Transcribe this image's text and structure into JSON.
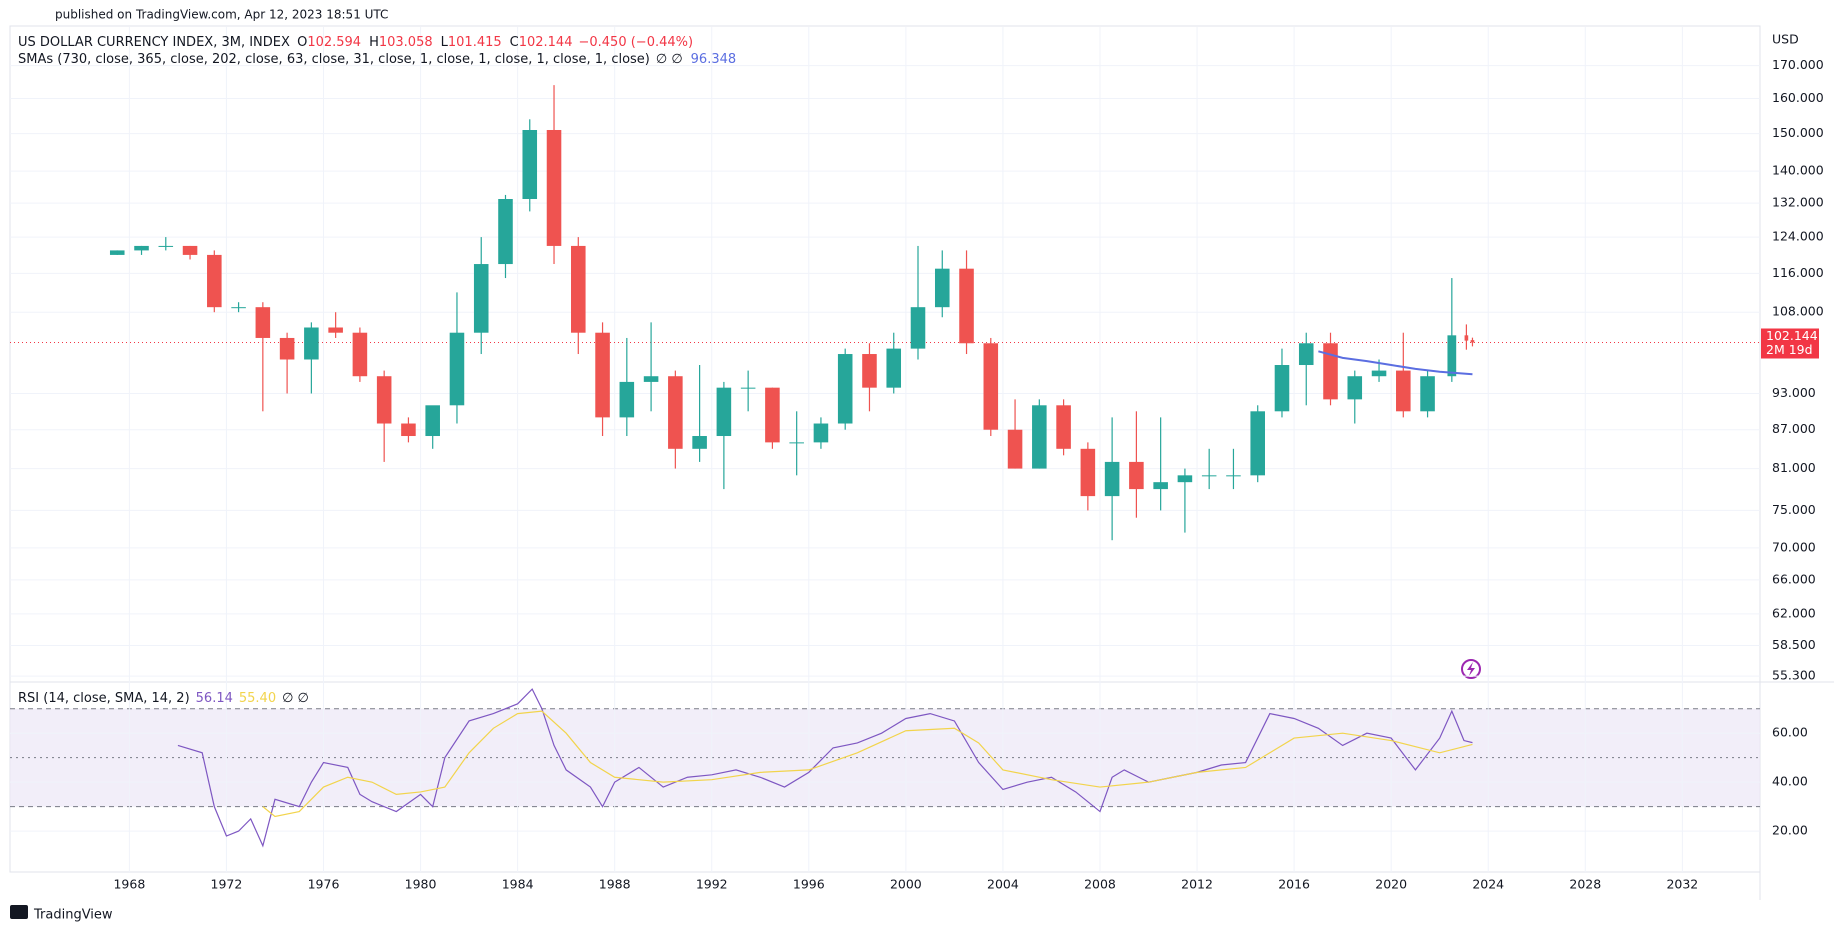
{
  "page": {
    "published": "published on TradingView.com, Apr 12, 2023 18:51 UTC",
    "footer": "TradingView"
  },
  "chart_data": [
    {
      "type": "candlestick",
      "title": "US DOLLAR CURRENCY INDEX, 3M, INDEX",
      "ohlc_labels": [
        "O",
        "H",
        "L",
        "C"
      ],
      "ohlc_values": [
        102.594,
        103.058,
        101.415,
        102.144
      ],
      "change": "−0.450 (−0.44%)",
      "indicator": "SMAs (730, close, 365, close, 202, close, 63, close, 31, close, 1, close, 1, close, 1, close, 1, close)",
      "indicator_flags": "∅ ∅",
      "indicator_value": 96.348,
      "currency": "USD",
      "last_price": 102.144,
      "countdown": "2M 19d",
      "log_scale": true,
      "grid": true,
      "up_color": "#26a69a",
      "down_color": "#ef5350",
      "last_price_color": "#f23645",
      "x": [
        1967.5,
        1968.5,
        1969.5,
        1970.5,
        1971.5,
        1972.5,
        1973.5,
        1974.5,
        1975.5,
        1976.5,
        1977.5,
        1978.5,
        1979.5,
        1980.5,
        1981.5,
        1982.5,
        1983.5,
        1984.5,
        1985.5,
        1986.5,
        1987.5,
        1988.5,
        1989.5,
        1990.5,
        1991.5,
        1992.5,
        1993.5,
        1994.5,
        1995.5,
        1996.5,
        1997.5,
        1998.5,
        1999.5,
        2000.5,
        2001.5,
        2002.5,
        2003.5,
        2004.5,
        2005.5,
        2006.5,
        2007.5,
        2008.5,
        2009.5,
        2010.5,
        2011.5,
        2012.5,
        2013.5,
        2014.5,
        2015.5,
        2016.5,
        2017.5,
        2018.5,
        2019.5,
        2020.5,
        2021.5,
        2022.5,
        2023.1,
        2023.35
      ],
      "open": [
        120,
        121,
        122,
        122,
        120,
        109,
        109,
        103,
        99,
        105,
        104,
        96,
        88,
        86,
        91,
        104,
        118,
        133,
        151,
        122,
        104,
        89,
        95,
        96,
        84,
        86,
        94,
        94,
        85,
        85,
        88,
        100,
        94,
        101,
        109,
        117,
        102,
        87,
        81,
        91,
        84,
        77,
        82,
        78,
        79,
        80,
        80,
        80,
        90,
        98,
        102,
        92,
        96,
        97,
        90,
        96,
        103.5,
        102.594
      ],
      "high": [
        121,
        122,
        124,
        122,
        121,
        110,
        110,
        104,
        106,
        108,
        105,
        97,
        89,
        90,
        112,
        124,
        134,
        154,
        164,
        124,
        106,
        103,
        106,
        97,
        98,
        95,
        97,
        94,
        90,
        89,
        101,
        102,
        104,
        122,
        121,
        121,
        103,
        92,
        92,
        92,
        85,
        89,
        90,
        89,
        81,
        84,
        84,
        91,
        101,
        104,
        104,
        97,
        99,
        104,
        97,
        115,
        105.6,
        103.058
      ],
      "low": [
        120,
        120,
        121,
        119,
        108,
        108,
        90,
        93,
        93,
        103,
        95,
        82,
        85,
        84,
        88,
        100,
        115,
        130,
        118,
        100,
        86,
        86,
        90,
        81,
        82,
        78,
        90,
        84,
        80,
        84,
        87,
        90,
        93,
        99,
        107,
        100,
        86,
        81,
        81,
        83,
        75,
        71,
        74,
        75,
        72,
        78,
        78,
        79,
        89,
        91,
        91,
        88,
        95,
        89,
        89,
        95,
        100.8,
        101.415
      ],
      "close": [
        121,
        122,
        122,
        120,
        109,
        109,
        103,
        99,
        105,
        104,
        96,
        88,
        86,
        91,
        104,
        118,
        133,
        151,
        122,
        104,
        89,
        95,
        96,
        84,
        86,
        94,
        94,
        85,
        85,
        88,
        100,
        94,
        101,
        109,
        117,
        102,
        87,
        81,
        91,
        84,
        77,
        82,
        78,
        79,
        80,
        80,
        80,
        90,
        98,
        102,
        92,
        96,
        97,
        90,
        96,
        103.5,
        102.5,
        102.144
      ],
      "overlays": [
        {
          "color": "#5b6ee1",
          "x": [
            2017.0,
            2018.0,
            2019.0,
            2020.0,
            2021.0,
            2022.0,
            2023.35
          ],
          "values": [
            100.5,
            99.3,
            98.7,
            98.0,
            97.3,
            96.8,
            96.348
          ]
        }
      ],
      "xlim": [
        1963.08,
        2035.2
      ],
      "ylim": [
        54.8,
        182.5
      ],
      "yticks": [
        {
          "value": 170,
          "label": "170.000"
        },
        {
          "value": 160,
          "label": "160.000"
        },
        {
          "value": 150,
          "label": "150.000"
        },
        {
          "value": 140,
          "label": "140.000"
        },
        {
          "value": 132,
          "label": "132.000"
        },
        {
          "value": 124,
          "label": "124.000"
        },
        {
          "value": 116,
          "label": "116.000"
        },
        {
          "value": 108,
          "label": "108.000"
        },
        {
          "value": 93,
          "label": "93.000"
        },
        {
          "value": 87,
          "label": "87.000"
        },
        {
          "value": 81,
          "label": "81.000"
        },
        {
          "value": 75,
          "label": "75.000"
        },
        {
          "value": 70,
          "label": "70.000"
        },
        {
          "value": 66,
          "label": "66.000"
        },
        {
          "value": 62,
          "label": "62.000"
        },
        {
          "value": 58.5,
          "label": "58.500"
        },
        {
          "value": 55.3,
          "label": "55.300"
        }
      ]
    },
    {
      "type": "line",
      "title": "RSI (14, close, SMA, 14, 2)",
      "legend_values": [
        "56.14",
        "55.40"
      ],
      "flags": "∅ ∅",
      "series": [
        {
          "color": "#7e57c2",
          "x": [
            1970,
            1971,
            1971.5,
            1972,
            1972.5,
            1973,
            1973.5,
            1974,
            1975,
            1975.5,
            1976,
            1977,
            1977.5,
            1978,
            1979,
            1980,
            1980.5,
            1981,
            1982,
            1983,
            1984,
            1984.6,
            1985,
            1985.5,
            1986,
            1987,
            1987.5,
            1988,
            1989,
            1990,
            1991,
            1992,
            1993,
            1994,
            1995,
            1996,
            1997,
            1998,
            1999,
            2000,
            2001,
            2002,
            2003,
            2004,
            2005,
            2006,
            2007,
            2008,
            2008.5,
            2009,
            2010,
            2011,
            2012,
            2013,
            2014,
            2015,
            2016,
            2017,
            2018,
            2019,
            2020,
            2021,
            2022,
            2022.5,
            2023,
            2023.35
          ],
          "values": [
            55,
            52,
            30,
            18,
            20,
            25,
            14,
            33,
            30,
            40,
            48,
            46,
            35,
            32,
            28,
            35,
            30,
            50,
            65,
            68,
            72,
            78,
            70,
            55,
            45,
            38,
            30,
            40,
            46,
            38,
            42,
            43,
            45,
            42,
            38,
            44,
            54,
            56,
            60,
            66,
            68,
            65,
            48,
            37,
            40,
            42,
            36,
            28,
            42,
            45,
            40,
            42,
            44,
            47,
            48,
            68,
            66,
            62,
            55,
            60,
            58,
            45,
            58,
            69,
            57,
            56.14
          ]
        },
        {
          "color": "#f2d44c",
          "x": [
            1973.5,
            1974,
            1975,
            1976,
            1977,
            1978,
            1979,
            1980,
            1981,
            1982,
            1983,
            1984,
            1985,
            1986,
            1987,
            1988,
            1990,
            1992,
            1994,
            1996,
            1998,
            2000,
            2002,
            2003,
            2004,
            2006,
            2008,
            2010,
            2012,
            2014,
            2016,
            2018,
            2020,
            2022,
            2023.35
          ],
          "values": [
            30,
            26,
            28,
            38,
            42,
            40,
            35,
            36,
            38,
            52,
            62,
            68,
            69,
            60,
            48,
            42,
            40,
            41,
            44,
            45,
            52,
            61,
            62,
            56,
            45,
            41,
            38,
            40,
            44,
            46,
            58,
            60,
            57,
            52,
            55.4
          ]
        }
      ],
      "bands": [
        70,
        50,
        30
      ],
      "band_fill": "#ede7f6",
      "xlim": [
        1963.08,
        2035.2
      ],
      "ylim": [
        3.3,
        80.5
      ],
      "yticks": [
        {
          "value": 60,
          "label": "60.00"
        },
        {
          "value": 40,
          "label": "40.00"
        },
        {
          "value": 20,
          "label": "20.00"
        }
      ],
      "xticks": [
        1968,
        1972,
        1976,
        1980,
        1984,
        1988,
        1992,
        1996,
        2000,
        2004,
        2008,
        2012,
        2016,
        2020,
        2024,
        2028,
        2032
      ],
      "grid": true
    }
  ]
}
